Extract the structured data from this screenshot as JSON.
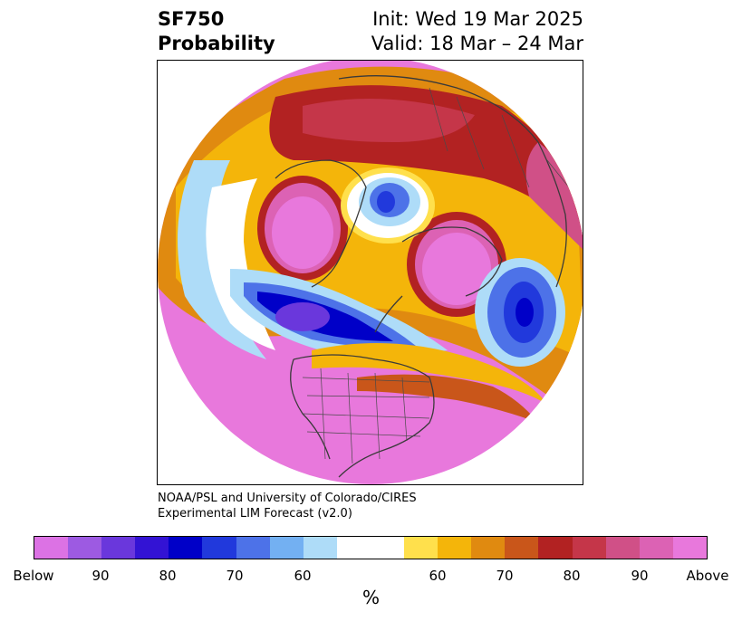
{
  "title": {
    "left_line1": "SF750",
    "left_line2": "Probability",
    "right_line1": "Init: Wed 19 Mar 2025",
    "right_line2": "Valid: 18 Mar – 24 Mar"
  },
  "credit": {
    "line1": "NOAA/PSL and University of Colorado/CIRES",
    "line2": "Experimental LIM Forecast (v2.0)"
  },
  "colorbar": {
    "colors": [
      "#dc72e4",
      "#9d5ae2",
      "#6a37dc",
      "#3313d4",
      "#0000c8",
      "#2139dc",
      "#4d72e8",
      "#73b0f2",
      "#aedcf8",
      "#ffffff",
      "#ffe04c",
      "#f4b50a",
      "#e08a10",
      "#c9561a",
      "#b22222",
      "#c53649",
      "#d05087",
      "#dc62b4",
      "#e878dc"
    ],
    "ticks": [
      "Below",
      "90",
      "80",
      "70",
      "60",
      "60",
      "70",
      "80",
      "90",
      "Above"
    ],
    "units": "%"
  },
  "map": {
    "type": "north-polar stereographic probability map",
    "fill_colors": {
      "background": "#e878dc",
      "red": "#b22222",
      "orange": "#e08a10",
      "yellow": "#f4b50a",
      "light_yellow": "#ffe04c",
      "light_blue": "#aedcf8",
      "mid_blue": "#4d72e8",
      "deep_blue": "#0000c8",
      "purple": "#6a37dc"
    }
  }
}
